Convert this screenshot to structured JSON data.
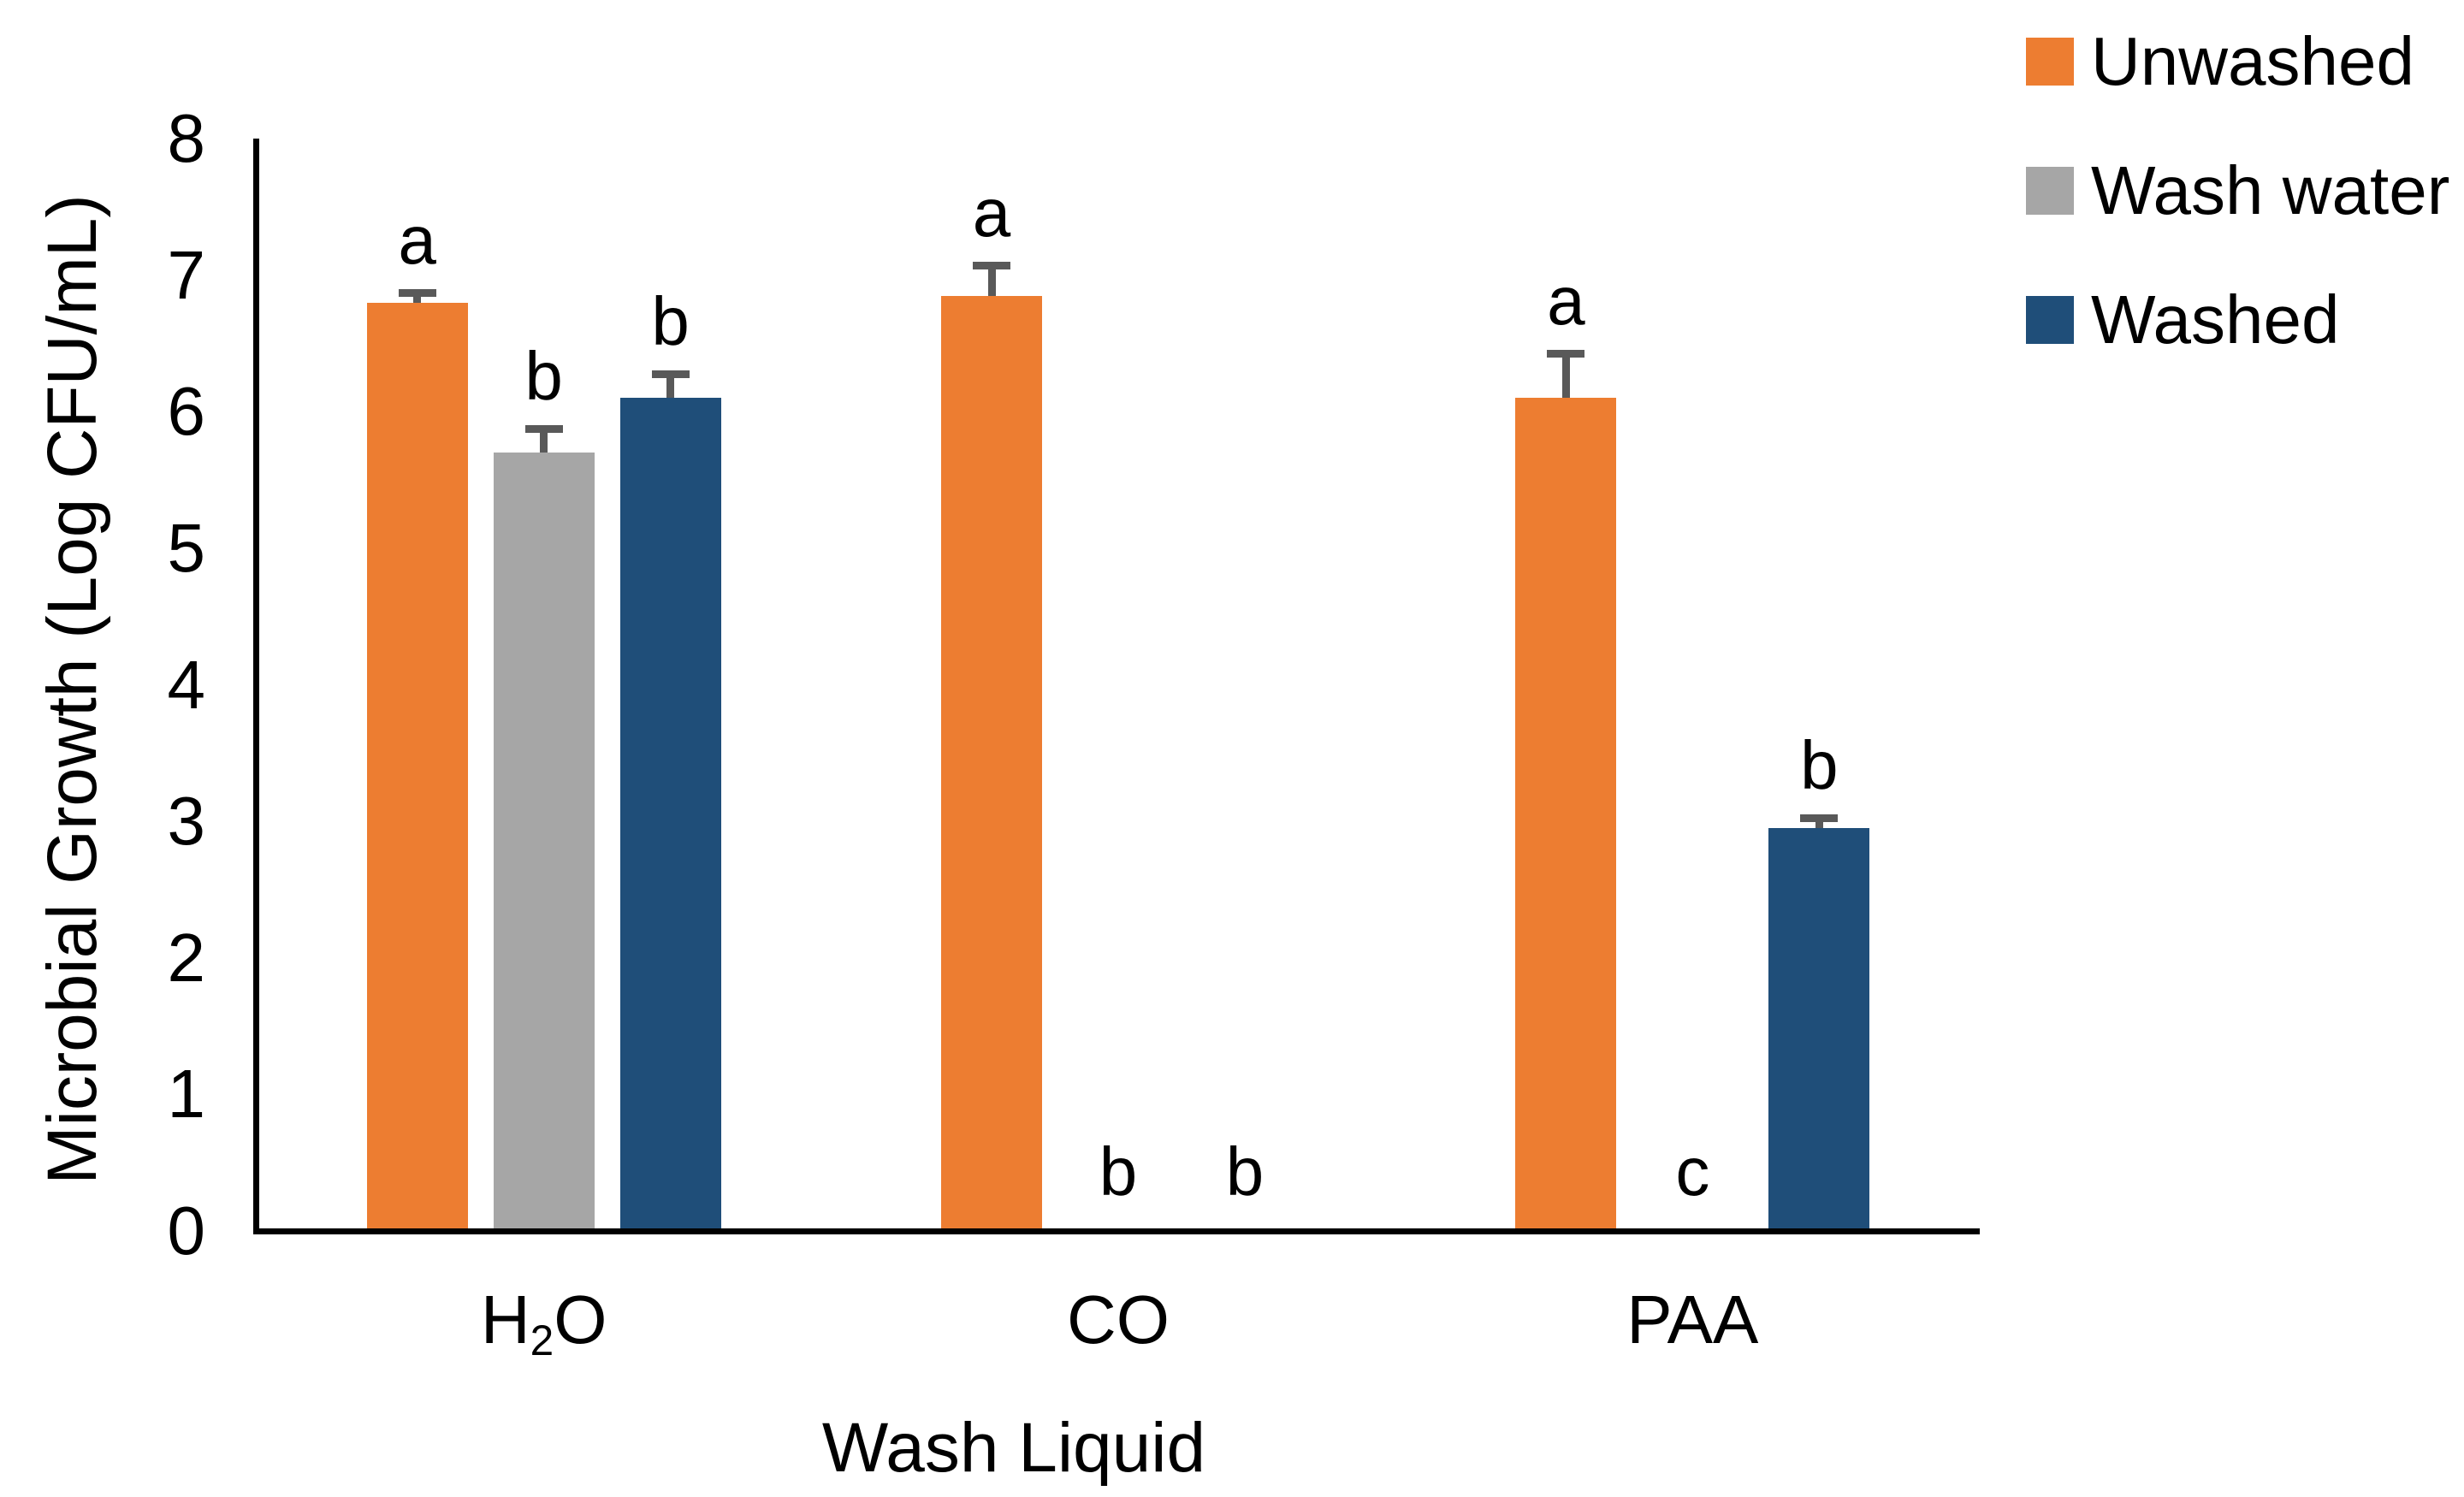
{
  "chart_data": {
    "type": "bar",
    "title": "",
    "xlabel": "Wash Liquid",
    "ylabel": "Microbial Growth (Log CFU/mL)",
    "categories": [
      "H₂O",
      "CO",
      "PAA"
    ],
    "series": [
      {
        "name": "Unwashed",
        "color": "#ED7D31",
        "values": [
          6.8,
          6.85,
          6.1
        ],
        "errors": [
          0.1,
          0.25,
          0.35
        ],
        "letters": [
          "a",
          "a",
          "a"
        ]
      },
      {
        "name": "Wash water",
        "color": "#A6A6A6",
        "values": [
          5.7,
          0,
          0
        ],
        "errors": [
          0.2,
          0,
          0
        ],
        "letters": [
          "b",
          "b",
          "c"
        ]
      },
      {
        "name": "Washed",
        "color": "#1F4E79",
        "values": [
          6.1,
          0,
          2.95
        ],
        "errors": [
          0.2,
          0,
          0.1
        ],
        "letters": [
          "b",
          "b",
          "b"
        ]
      }
    ],
    "ylim": [
      0,
      8
    ],
    "ytick_step": 1,
    "grid": false,
    "legend_position": "right-top",
    "error_bar_color": "#595959",
    "axis_color": "#000000"
  }
}
